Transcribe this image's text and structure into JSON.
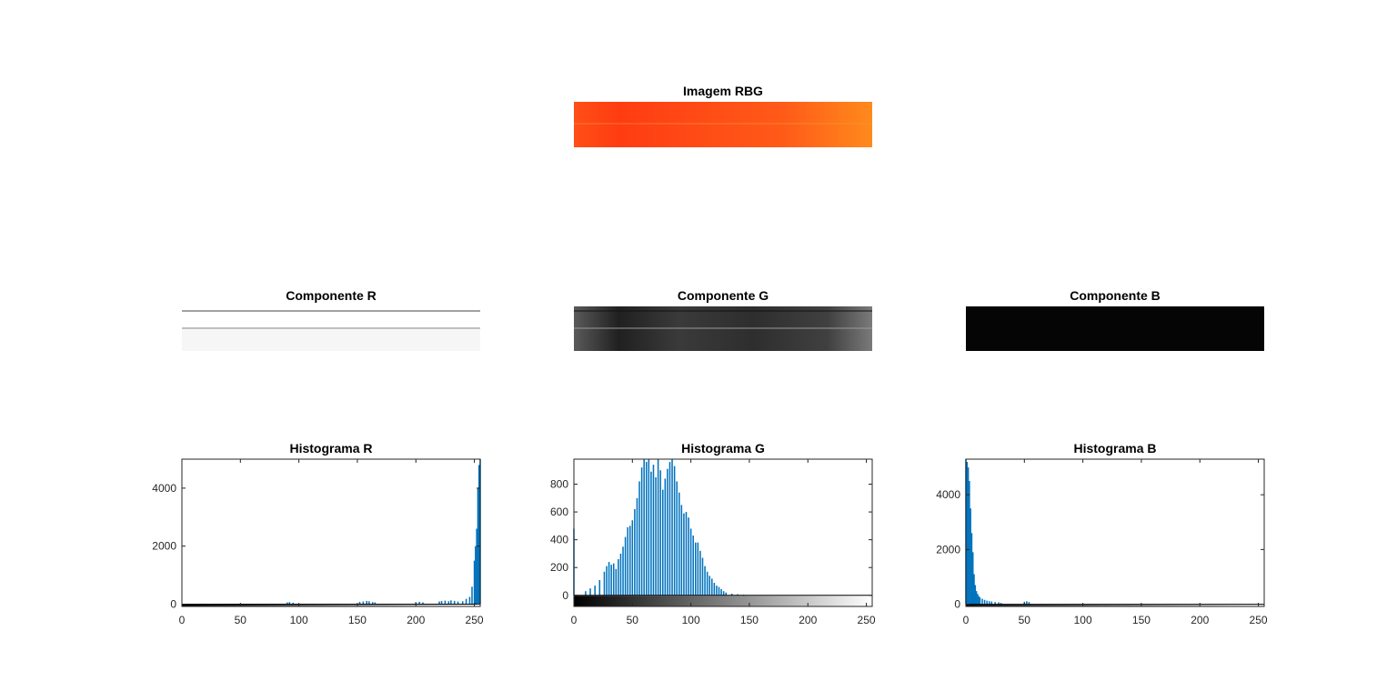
{
  "figure": {
    "rgb_title": "Imagem RBG",
    "component_titles": [
      "Componente R",
      "Componente G",
      "Componente B"
    ]
  },
  "colors": {
    "bar": "#0072BD",
    "axes": "#262626",
    "rgb_base": "#ff4a1a",
    "rgb_hot": "#ff7a1a"
  },
  "chart_data": [
    {
      "type": "bar",
      "title": "Histograma R",
      "xlabel": "",
      "ylabel": "",
      "xlim": [
        0,
        255
      ],
      "ylim": [
        -80,
        5000
      ],
      "xticks": [
        0,
        50,
        100,
        150,
        200,
        250
      ],
      "yticks": [
        0,
        2000,
        4000
      ],
      "colorbar": "gray",
      "x": [
        90,
        92,
        95,
        152,
        155,
        158,
        160,
        163,
        165,
        200,
        203,
        206,
        220,
        222,
        225,
        228,
        230,
        233,
        236,
        240,
        243,
        246,
        248,
        250,
        251,
        252,
        253,
        254,
        255
      ],
      "values": [
        60,
        70,
        50,
        80,
        90,
        110,
        100,
        70,
        60,
        70,
        80,
        60,
        90,
        110,
        120,
        100,
        130,
        110,
        90,
        100,
        180,
        250,
        600,
        1500,
        2000,
        2600,
        4000,
        4800,
        5000
      ]
    },
    {
      "type": "bar",
      "title": "Histograma G",
      "xlabel": "",
      "ylabel": "",
      "xlim": [
        0,
        255
      ],
      "ylim": [
        -80,
        980
      ],
      "xticks": [
        0,
        50,
        100,
        150,
        200,
        250
      ],
      "yticks": [
        0,
        200,
        400,
        600,
        800
      ],
      "colorbar": "gray",
      "x": [
        0,
        10,
        14,
        18,
        22,
        26,
        28,
        30,
        32,
        34,
        36,
        38,
        40,
        42,
        44,
        46,
        48,
        50,
        52,
        54,
        56,
        58,
        60,
        62,
        64,
        66,
        68,
        70,
        72,
        74,
        76,
        78,
        80,
        82,
        84,
        86,
        88,
        90,
        92,
        94,
        96,
        98,
        100,
        102,
        104,
        106,
        108,
        110,
        112,
        114,
        116,
        118,
        120,
        122,
        124,
        126,
        128,
        130,
        135,
        140,
        145
      ],
      "values": [
        480,
        30,
        50,
        70,
        110,
        170,
        210,
        240,
        220,
        230,
        190,
        260,
        300,
        350,
        420,
        490,
        500,
        540,
        620,
        700,
        820,
        920,
        980,
        960,
        1000,
        890,
        940,
        850,
        980,
        900,
        760,
        840,
        910,
        960,
        1000,
        930,
        820,
        740,
        650,
        590,
        600,
        560,
        480,
        430,
        380,
        380,
        320,
        270,
        210,
        170,
        140,
        120,
        90,
        70,
        60,
        45,
        30,
        20,
        12,
        8,
        5
      ]
    },
    {
      "type": "bar",
      "title": "Histograma B",
      "xlabel": "",
      "ylabel": "",
      "xlim": [
        0,
        255
      ],
      "ylim": [
        -80,
        5300
      ],
      "xticks": [
        0,
        50,
        100,
        150,
        200,
        250
      ],
      "yticks": [
        0,
        2000,
        4000
      ],
      "colorbar": "gray",
      "x": [
        0,
        1,
        2,
        3,
        4,
        5,
        6,
        7,
        8,
        9,
        10,
        11,
        12,
        14,
        16,
        18,
        20,
        22,
        25,
        28,
        30,
        50,
        52,
        54
      ],
      "values": [
        5300,
        5200,
        5000,
        4500,
        3500,
        2600,
        1900,
        1100,
        700,
        480,
        380,
        300,
        250,
        200,
        160,
        130,
        110,
        100,
        80,
        70,
        50,
        90,
        110,
        80
      ]
    }
  ]
}
